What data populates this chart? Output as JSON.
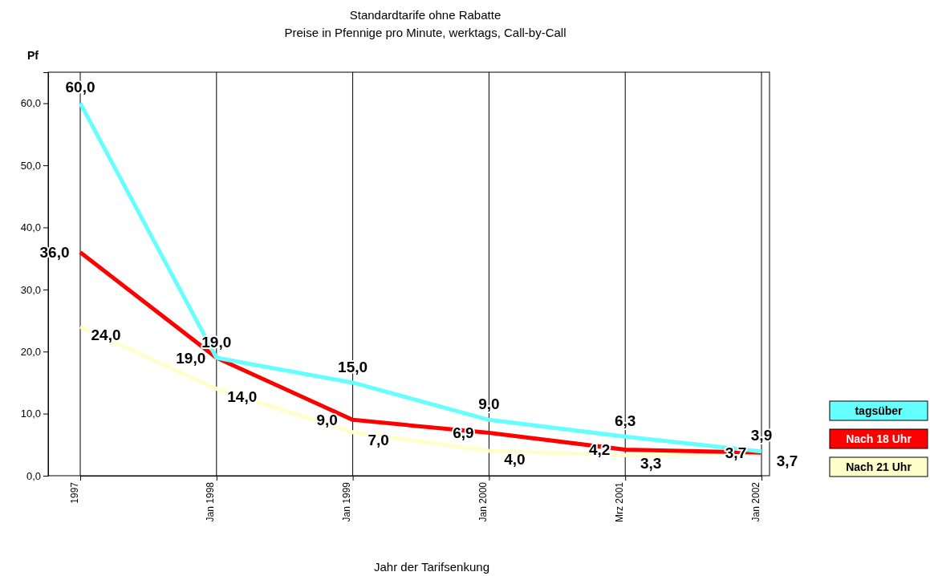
{
  "chart_data": {
    "type": "line",
    "title": "Standardtarife ohne Rabatte",
    "subtitle": "Preise in Pfennige pro Minute, werktags, Call-by-Call",
    "xlabel": "Jahr der Tarifsenkung",
    "ylabel": "Pf",
    "categories": [
      "1997",
      "Jan 1998",
      "Jan 1999",
      "Jan 2000",
      "Mrz 2001",
      "Jan 2002"
    ],
    "series": [
      {
        "name": "tagsüber",
        "color": "#66ffff",
        "values": [
          60.0,
          19.0,
          15.0,
          9.0,
          6.3,
          3.9
        ],
        "value_labels": [
          "60,0",
          "19,0",
          "15,0",
          "9,0",
          "6,3",
          "3,9"
        ]
      },
      {
        "name": "Nach 18 Uhr",
        "color": "#ff0000",
        "values": [
          36.0,
          19.0,
          9.0,
          6.9,
          4.2,
          3.7
        ],
        "value_labels": [
          "36,0",
          "19,0",
          "9,0",
          "6,9",
          "4,2",
          "3,7"
        ]
      },
      {
        "name": "Nach 21 Uhr",
        "color": "#ffffcc",
        "values": [
          24.0,
          14.0,
          7.0,
          4.0,
          3.3,
          3.7
        ],
        "value_labels": [
          "24,0",
          "14,0",
          "7,0",
          "4,0",
          "3,3",
          "3,7"
        ]
      }
    ],
    "ylim": [
      0,
      65
    ],
    "yticks": [
      {
        "value": 0,
        "label": "0,0"
      },
      {
        "value": 10,
        "label": "10,0"
      },
      {
        "value": 20,
        "label": "20,0"
      },
      {
        "value": 30,
        "label": "30,0"
      },
      {
        "value": 40,
        "label": "40,0"
      },
      {
        "value": 50,
        "label": "50,0"
      },
      {
        "value": 60,
        "label": "60,0"
      }
    ],
    "grid": "x",
    "legend": "right",
    "marker": "none",
    "line_style": "solid"
  }
}
